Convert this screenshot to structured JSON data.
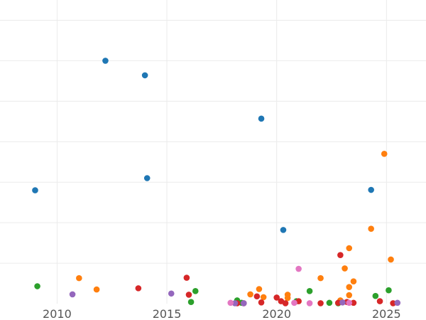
{
  "chart_data": {
    "type": "scatter",
    "title": "",
    "xlabel": "",
    "ylabel": "",
    "xlim": [
      2007.4,
      2026.8
    ],
    "ylim": [
      0,
      75
    ],
    "grid": true,
    "legend": "none",
    "x_ticks": [
      2010,
      2015,
      2020,
      2025
    ],
    "x_tick_labels": [
      "2010",
      "2015",
      "2020",
      "2025"
    ],
    "y_gridlines": [
      10,
      20,
      30,
      40,
      50,
      60,
      70
    ],
    "series": [
      {
        "color": "#1f77b4",
        "points": [
          [
            2009.0,
            28.0
          ],
          [
            2012.2,
            60.0
          ],
          [
            2014.0,
            56.4
          ],
          [
            2014.1,
            31.0
          ],
          [
            2019.3,
            45.7
          ],
          [
            2020.3,
            18.2
          ],
          [
            2024.3,
            28.1
          ]
        ]
      },
      {
        "color": "#ff7f0e",
        "points": [
          [
            2011.0,
            6.3
          ],
          [
            2011.8,
            3.5
          ],
          [
            2018.8,
            2.3
          ],
          [
            2019.2,
            3.6
          ],
          [
            2019.4,
            1.6
          ],
          [
            2020.5,
            2.2
          ],
          [
            2020.5,
            1.4
          ],
          [
            2022.0,
            6.3
          ],
          [
            2022.9,
            0.8
          ],
          [
            2023.1,
            8.7
          ],
          [
            2023.3,
            13.7
          ],
          [
            2023.3,
            4.1
          ],
          [
            2023.3,
            2.1
          ],
          [
            2023.5,
            5.5
          ],
          [
            2024.3,
            18.5
          ],
          [
            2024.9,
            37.0
          ],
          [
            2025.2,
            10.9
          ]
        ]
      },
      {
        "color": "#2ca02c",
        "points": [
          [
            2009.1,
            4.3
          ],
          [
            2016.1,
            0.4
          ],
          [
            2016.3,
            3.1
          ],
          [
            2018.2,
            0.8
          ],
          [
            2018.4,
            0.2
          ],
          [
            2020.9,
            0.6
          ],
          [
            2021.5,
            3.1
          ],
          [
            2022.4,
            0.2
          ],
          [
            2022.8,
            0.1
          ],
          [
            2024.5,
            1.9
          ],
          [
            2025.1,
            3.3
          ]
        ]
      },
      {
        "color": "#d62728",
        "points": [
          [
            2013.7,
            3.8
          ],
          [
            2015.9,
            6.4
          ],
          [
            2016.0,
            2.2
          ],
          [
            2018.2,
            0.1
          ],
          [
            2018.5,
            0.1
          ],
          [
            2019.1,
            1.8
          ],
          [
            2019.3,
            0.3
          ],
          [
            2020.0,
            1.5
          ],
          [
            2020.2,
            0.6
          ],
          [
            2020.4,
            0.1
          ],
          [
            2021.0,
            0.6
          ],
          [
            2022.0,
            0.1
          ],
          [
            2022.8,
            0.2
          ],
          [
            2022.9,
            12.0
          ],
          [
            2023.2,
            0.4
          ],
          [
            2023.5,
            0.2
          ],
          [
            2024.7,
            0.6
          ],
          [
            2025.3,
            0.1
          ]
        ]
      },
      {
        "color": "#9467bd",
        "points": [
          [
            2010.7,
            2.3
          ],
          [
            2015.2,
            2.5
          ],
          [
            2018.1,
            0.1
          ],
          [
            2018.5,
            0.1
          ],
          [
            2023.0,
            0.3
          ],
          [
            2025.5,
            0.2
          ]
        ]
      },
      {
        "color": "#e377c2",
        "points": [
          [
            2017.9,
            0.2
          ],
          [
            2020.8,
            0.2
          ],
          [
            2021.0,
            8.6
          ],
          [
            2021.5,
            0.1
          ],
          [
            2023.3,
            0.2
          ]
        ]
      }
    ]
  }
}
